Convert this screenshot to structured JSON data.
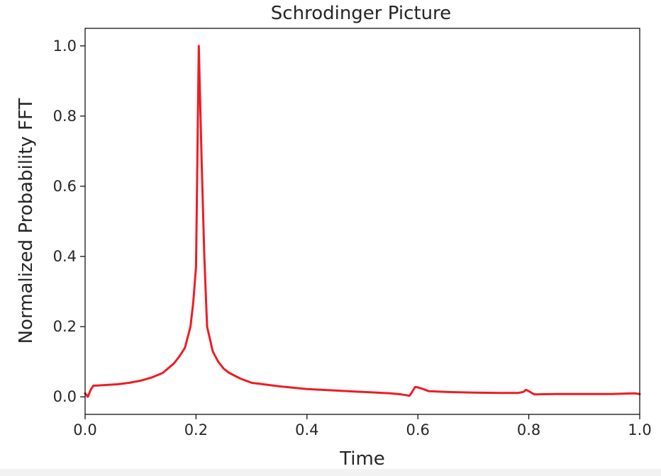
{
  "chart_data": {
    "type": "line",
    "title": "Schrodinger Picture",
    "xlabel": "Time",
    "ylabel": "Normalized Probability FFT",
    "xlim": [
      0.0,
      1.0
    ],
    "ylim": [
      -0.05,
      1.05
    ],
    "xticks": [
      "0.0",
      "0.2",
      "0.4",
      "0.6",
      "0.8",
      "1.0"
    ],
    "xtick_values": [
      0.0,
      0.2,
      0.4,
      0.6,
      0.8,
      1.0
    ],
    "yticks": [
      "0.0",
      "0.2",
      "0.4",
      "0.6",
      "0.8",
      "1.0"
    ],
    "ytick_values": [
      0.0,
      0.2,
      0.4,
      0.6,
      0.8,
      1.0
    ],
    "grid": false,
    "color": "#ee1c25",
    "series": [
      {
        "x": [
          0.0,
          0.005,
          0.01,
          0.015,
          0.02,
          0.04,
          0.06,
          0.08,
          0.1,
          0.12,
          0.14,
          0.16,
          0.17,
          0.18,
          0.19,
          0.195,
          0.2,
          0.205,
          0.21,
          0.215,
          0.22,
          0.23,
          0.24,
          0.25,
          0.26,
          0.28,
          0.3,
          0.35,
          0.4,
          0.45,
          0.5,
          0.55,
          0.57,
          0.585,
          0.59,
          0.595,
          0.6,
          0.61,
          0.62,
          0.65,
          0.7,
          0.75,
          0.78,
          0.79,
          0.795,
          0.8,
          0.81,
          0.85,
          0.9,
          0.95,
          0.99,
          1.0
        ],
        "y": [
          0.01,
          0.0,
          0.02,
          0.032,
          0.032,
          0.034,
          0.036,
          0.04,
          0.046,
          0.055,
          0.068,
          0.095,
          0.115,
          0.14,
          0.2,
          0.27,
          0.37,
          1.0,
          0.68,
          0.4,
          0.2,
          0.13,
          0.1,
          0.08,
          0.068,
          0.052,
          0.04,
          0.03,
          0.022,
          0.018,
          0.014,
          0.01,
          0.007,
          0.003,
          0.015,
          0.028,
          0.027,
          0.022,
          0.016,
          0.014,
          0.012,
          0.011,
          0.011,
          0.014,
          0.02,
          0.016,
          0.007,
          0.008,
          0.008,
          0.008,
          0.01,
          0.008
        ]
      }
    ]
  }
}
